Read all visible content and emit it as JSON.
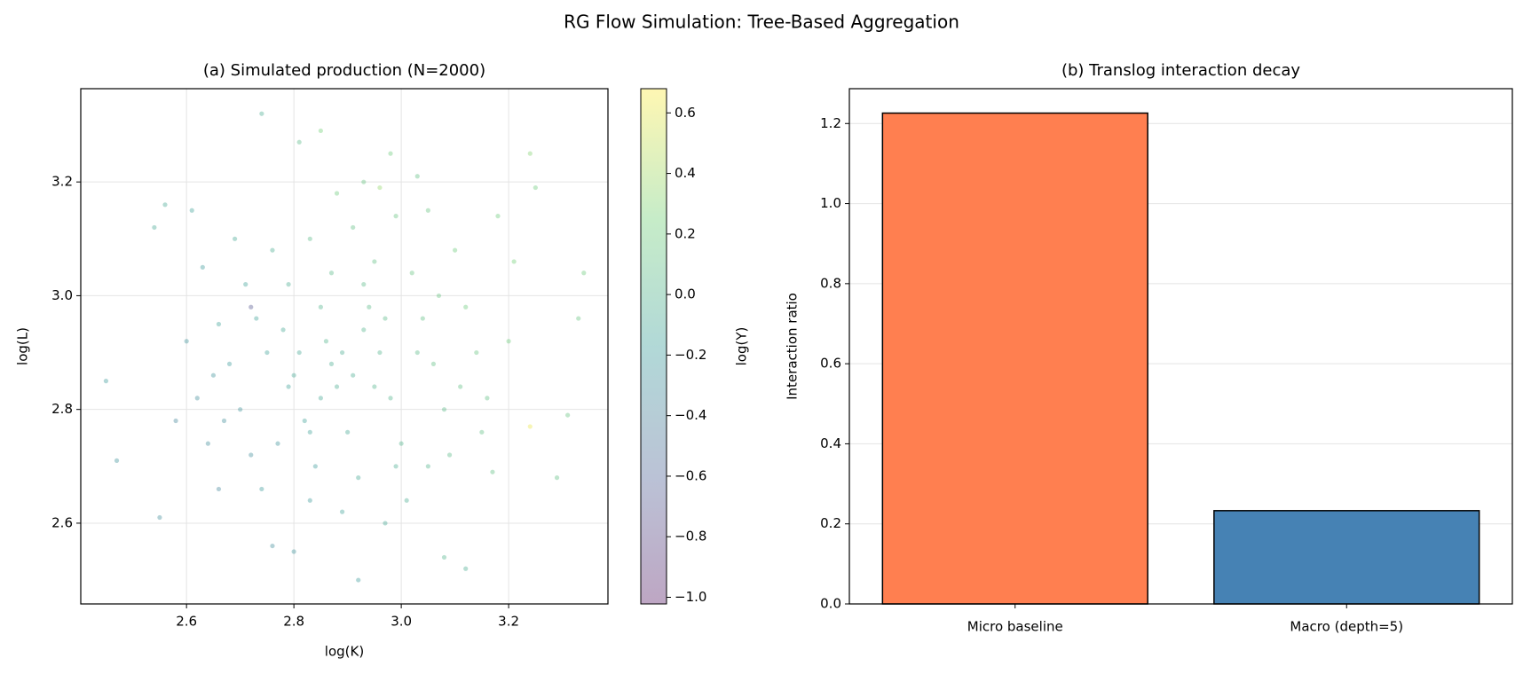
{
  "title": "RG Flow Simulation: Tree-Based Aggregation",
  "chart_data": [
    {
      "type": "scatter",
      "title": "(a) Simulated production (N=2000)",
      "xlabel": "log(K)",
      "ylabel": "log(L)",
      "colormap": "viridis",
      "alpha": 0.35,
      "colorbar_label": "log(Y)",
      "grid": true,
      "xlim": [
        2.403,
        3.385
      ],
      "ylim": [
        2.458,
        3.364
      ],
      "clim": [
        -1.022,
        0.68
      ],
      "xticks": [
        2.6,
        2.8,
        {
          "value": 3.0,
          "label": "3.0"
        },
        3.2
      ],
      "yticks": [
        2.6,
        2.8,
        {
          "value": 3.0,
          "label": "3.0"
        },
        3.2
      ],
      "cticks": [
        {
          "value": -1.0,
          "label": "−1.0"
        },
        {
          "value": -0.8,
          "label": "−0.8"
        },
        {
          "value": -0.6,
          "label": "−0.6"
        },
        {
          "value": -0.4,
          "label": "−0.4"
        },
        {
          "value": -0.2,
          "label": "−0.2"
        },
        {
          "value": 0.0,
          "label": "0.0"
        },
        0.2,
        0.4,
        0.6
      ],
      "x": [
        2.47,
        2.45,
        2.74,
        2.85,
        2.92,
        3.34,
        3.33,
        3.24,
        3.25,
        3.29,
        3.31,
        3.24,
        2.55,
        2.54,
        2.56,
        3.12,
        3.08,
        2.76,
        2.8,
        2.72,
        2.96,
        2.98,
        3.03,
        2.81,
        2.88,
        2.93,
        2.63,
        2.66,
        2.68,
        2.7,
        2.72,
        2.74,
        2.78,
        2.8,
        2.82,
        2.84,
        2.86,
        2.88,
        2.9,
        2.92,
        2.94,
        2.96,
        2.98,
        3.0,
        3.02,
        3.04,
        3.06,
        3.08,
        3.1,
        3.12,
        3.14,
        3.16,
        3.18,
        3.2,
        2.62,
        2.64,
        2.66,
        2.6,
        2.58,
        2.76,
        2.79,
        2.83,
        2.87,
        2.91,
        2.95,
        2.99,
        3.01,
        3.05,
        2.97,
        2.89,
        2.83,
        2.77,
        2.85,
        2.87,
        2.89,
        2.91,
        2.93,
        2.81,
        2.79,
        2.75,
        2.73,
        2.71,
        2.95,
        2.97,
        3.03,
        3.07,
        3.11,
        3.15,
        3.09,
        2.85,
        2.93,
        2.69,
        2.67,
        2.65,
        2.83,
        2.99,
        3.21,
        3.17,
        2.61,
        3.05
      ],
      "y": [
        2.71,
        2.85,
        3.32,
        3.29,
        2.5,
        3.04,
        2.96,
        3.25,
        3.19,
        2.68,
        2.79,
        2.77,
        2.61,
        3.12,
        3.16,
        2.52,
        2.54,
        2.56,
        2.55,
        2.98,
        3.19,
        3.25,
        3.21,
        3.27,
        3.18,
        3.2,
        3.05,
        2.95,
        2.88,
        2.8,
        2.72,
        2.66,
        2.94,
        2.86,
        2.78,
        2.7,
        2.92,
        2.84,
        2.76,
        2.68,
        2.98,
        2.9,
        2.82,
        2.74,
        3.04,
        2.96,
        2.88,
        2.8,
        3.08,
        2.98,
        2.9,
        2.82,
        3.14,
        2.92,
        2.82,
        2.74,
        2.66,
        2.92,
        2.78,
        3.08,
        3.02,
        3.1,
        3.04,
        3.12,
        3.06,
        3.14,
        2.64,
        2.7,
        2.6,
        2.62,
        2.64,
        2.74,
        2.82,
        2.88,
        2.9,
        2.86,
        2.94,
        2.9,
        2.84,
        2.9,
        2.96,
        3.02,
        2.84,
        2.96,
        2.9,
        3.0,
        2.84,
        2.76,
        2.72,
        2.98,
        3.02,
        3.1,
        2.78,
        2.86,
        2.76,
        2.7,
        3.06,
        2.69,
        3.15,
        3.15
      ],
      "c": [
        -0.25,
        -0.2,
        -0.05,
        0.25,
        -0.2,
        0.2,
        0.15,
        0.3,
        0.2,
        0.1,
        0.15,
        0.62,
        -0.3,
        -0.1,
        -0.1,
        -0.05,
        0.0,
        -0.3,
        -0.25,
        -0.7,
        0.35,
        0.2,
        0.1,
        0.05,
        0.2,
        0.15,
        -0.2,
        -0.15,
        -0.2,
        -0.25,
        -0.3,
        -0.2,
        -0.1,
        -0.1,
        -0.15,
        -0.2,
        0.0,
        -0.05,
        -0.1,
        -0.1,
        0.05,
        0.0,
        0.0,
        0.0,
        0.15,
        0.1,
        0.1,
        0.05,
        0.2,
        0.2,
        0.15,
        0.1,
        0.2,
        0.2,
        -0.3,
        -0.3,
        -0.35,
        -0.25,
        -0.35,
        -0.05,
        -0.05,
        0.05,
        0.05,
        0.1,
        0.1,
        0.15,
        -0.05,
        0.0,
        -0.1,
        -0.15,
        -0.2,
        -0.25,
        -0.1,
        -0.05,
        -0.05,
        -0.05,
        0.0,
        -0.1,
        -0.15,
        -0.15,
        -0.15,
        -0.15,
        0.0,
        0.05,
        0.05,
        0.15,
        0.1,
        0.1,
        0.05,
        0.0,
        0.05,
        -0.1,
        -0.3,
        -0.25,
        -0.15,
        -0.05,
        0.25,
        0.1,
        -0.15,
        0.15
      ]
    },
    {
      "type": "bar",
      "title": "(b) Translog interaction decay",
      "ylabel": "Interaction ratio",
      "grid": true,
      "categories": [
        "Micro baseline",
        "Macro (depth=5)"
      ],
      "values": [
        1.226,
        0.233
      ],
      "colors": [
        "#ff7f50",
        "#4682b4"
      ],
      "edgecolor": "#000000",
      "ylim": [
        0,
        1.287
      ],
      "yticks": [
        {
          "value": 0,
          "label": "0.0"
        },
        0.2,
        0.4,
        0.6,
        0.8,
        {
          "value": 1.0,
          "label": "1.0"
        },
        1.2
      ]
    }
  ]
}
